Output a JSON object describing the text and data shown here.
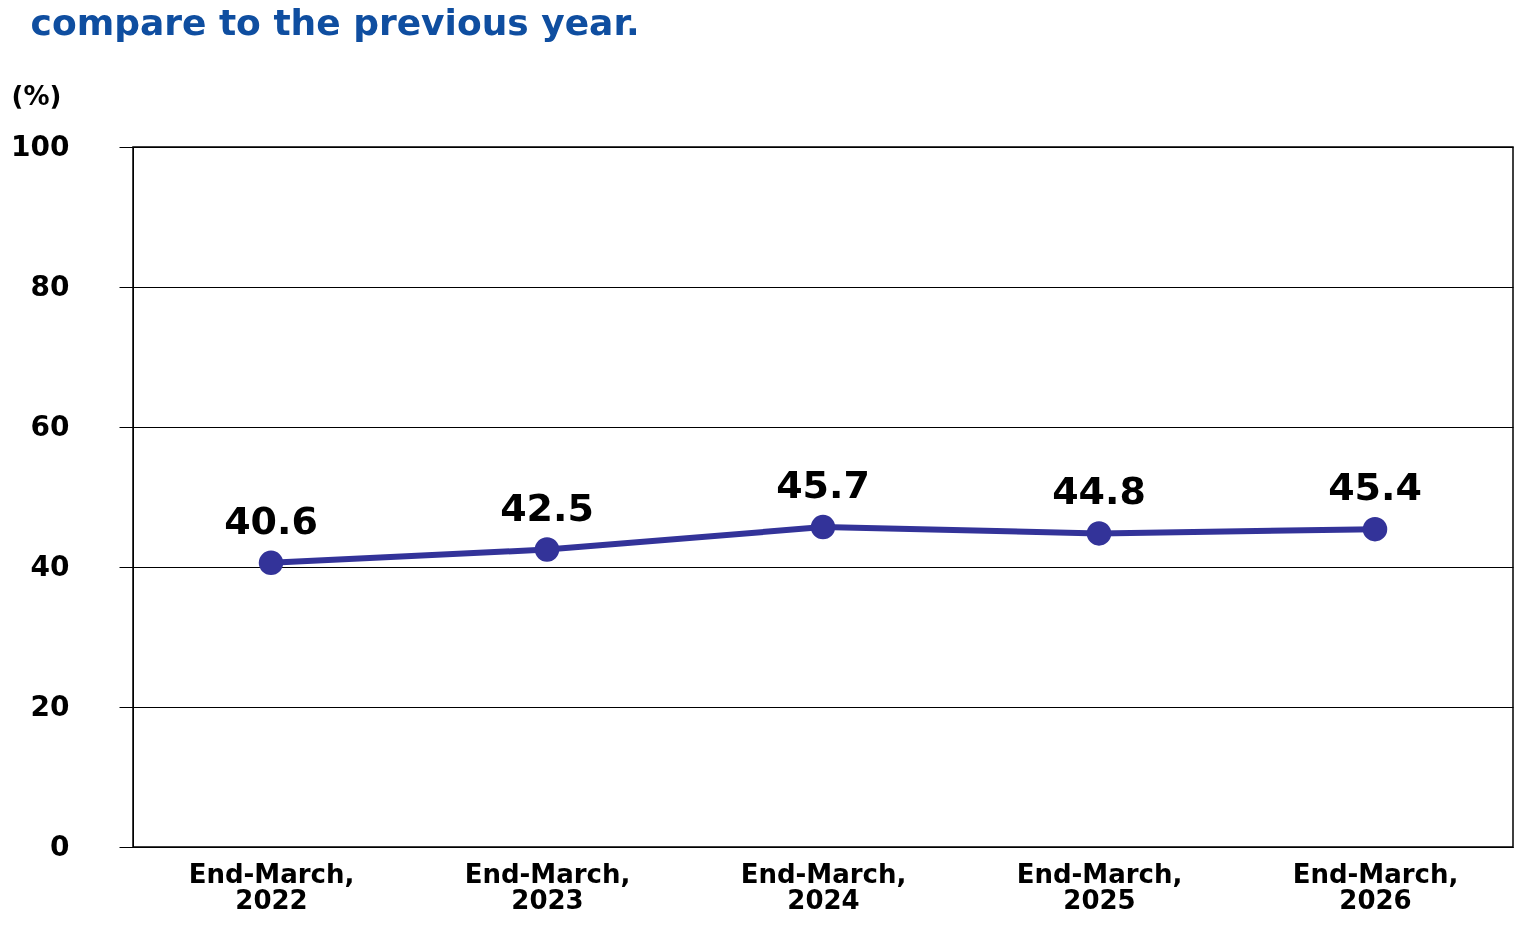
{
  "chart_data": {
    "type": "line",
    "title": "compare to the previous year.",
    "ylabel": "(%)",
    "categories": [
      "End-March, 2022",
      "End-March, 2023",
      "End-March, 2024",
      "End-March, 2025",
      "End-March, 2026"
    ],
    "series": [
      {
        "color": "#333399",
        "values": [
          40.6,
          42.5,
          45.7,
          44.8,
          45.4
        ]
      }
    ],
    "ylim": [
      0,
      100
    ],
    "yticks": [
      0,
      20,
      40,
      60,
      80,
      100
    ],
    "grid": "y",
    "marker": "circle",
    "line_style": "solid",
    "data_labels": true
  }
}
